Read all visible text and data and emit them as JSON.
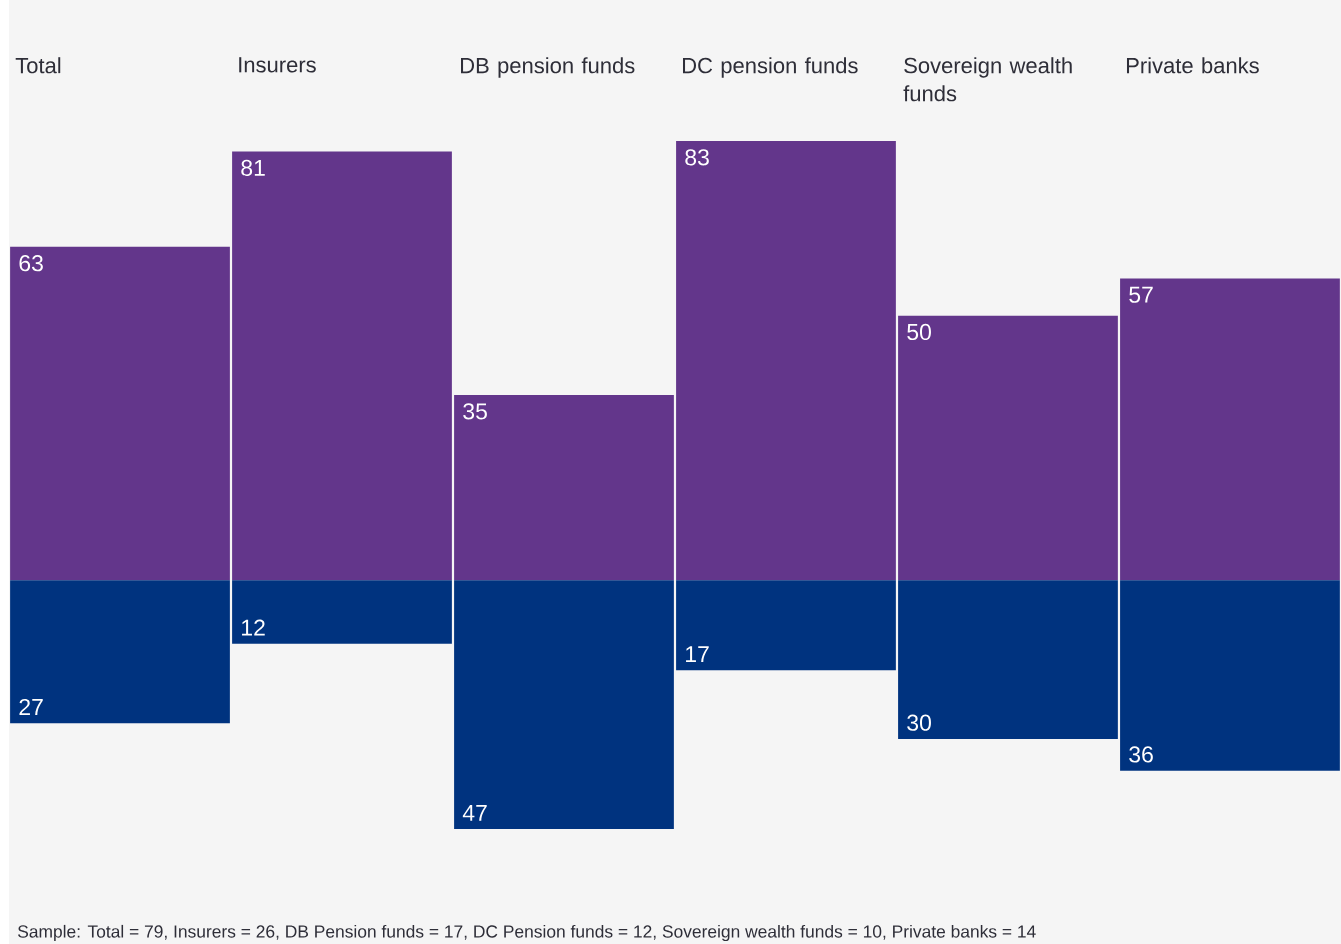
{
  "chart_data": {
    "type": "bar",
    "stacked": true,
    "categories": [
      "Total",
      "Insurers",
      "DB pension funds",
      "DC pension funds",
      "Sovereign wealth funds",
      "Private banks"
    ],
    "series": [
      {
        "color": "#63368b",
        "values": [
          63,
          81,
          35,
          83,
          50,
          57
        ],
        "value_labels": [
          "63",
          "81",
          "35",
          "83",
          "50",
          "57"
        ]
      },
      {
        "color": "#00337f",
        "values": [
          -27,
          -12,
          -47,
          -17,
          -30,
          -36
        ]
      }
    ],
    "annotations": [
      {
        "text": "27",
        "x": "Total",
        "y": -27
      },
      {
        "text": "12",
        "x": "Insurers",
        "y": -12
      },
      {
        "text": "47",
        "x": "DB pension funds",
        "y": -47
      },
      {
        "text": "17",
        "x": "DC pension funds",
        "y": -17
      },
      {
        "text": "30",
        "x": "Sovereign wealth funds",
        "y": -30
      },
      {
        "text": "36",
        "x": "Private banks",
        "y": -36
      },
      "Sample: Total = 79, Insurers = 26, DB Pension funds = 17, DC Pension funds = 12, Sovereign wealth funds = 10, Private banks = 14"
    ]
  }
}
